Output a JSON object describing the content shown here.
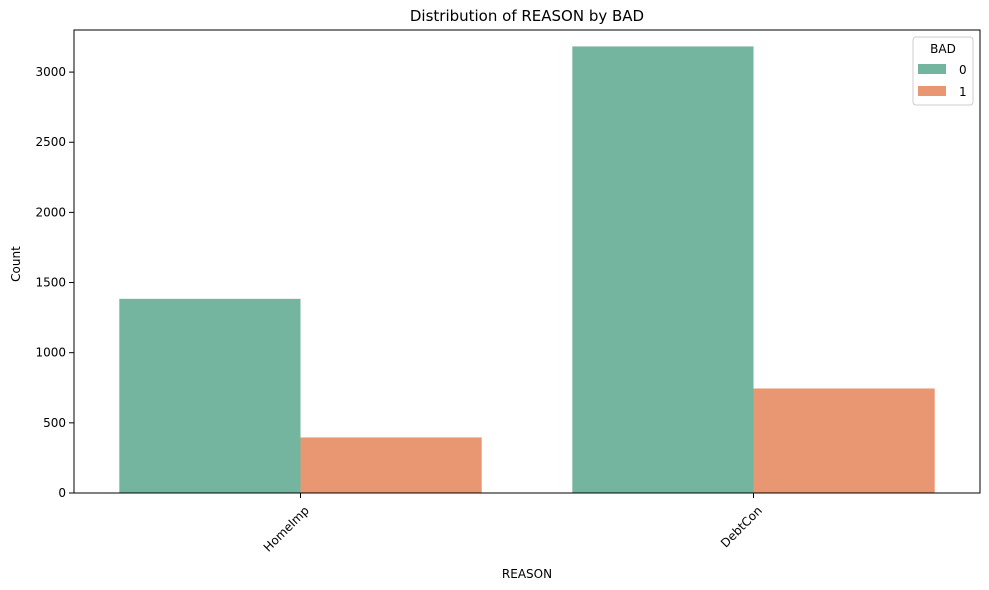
{
  "chart_data": {
    "type": "bar",
    "title": "Distribution of REASON by BAD",
    "xlabel": "REASON",
    "ylabel": "Count",
    "categories": [
      "HomeImp",
      "DebtCon"
    ],
    "series": [
      {
        "name": "0",
        "values": [
          1384,
          3183
        ],
        "color": "#74b5a0"
      },
      {
        "name": "1",
        "values": [
          396,
          745
        ],
        "color": "#e99772"
      }
    ],
    "ylim": [
      0,
      3300
    ],
    "yticks": [
      0,
      500,
      1000,
      1500,
      2000,
      2500,
      3000
    ],
    "legend": {
      "title": "BAD",
      "position": "top-right"
    },
    "grid": false,
    "xtick_rotation": 45
  }
}
